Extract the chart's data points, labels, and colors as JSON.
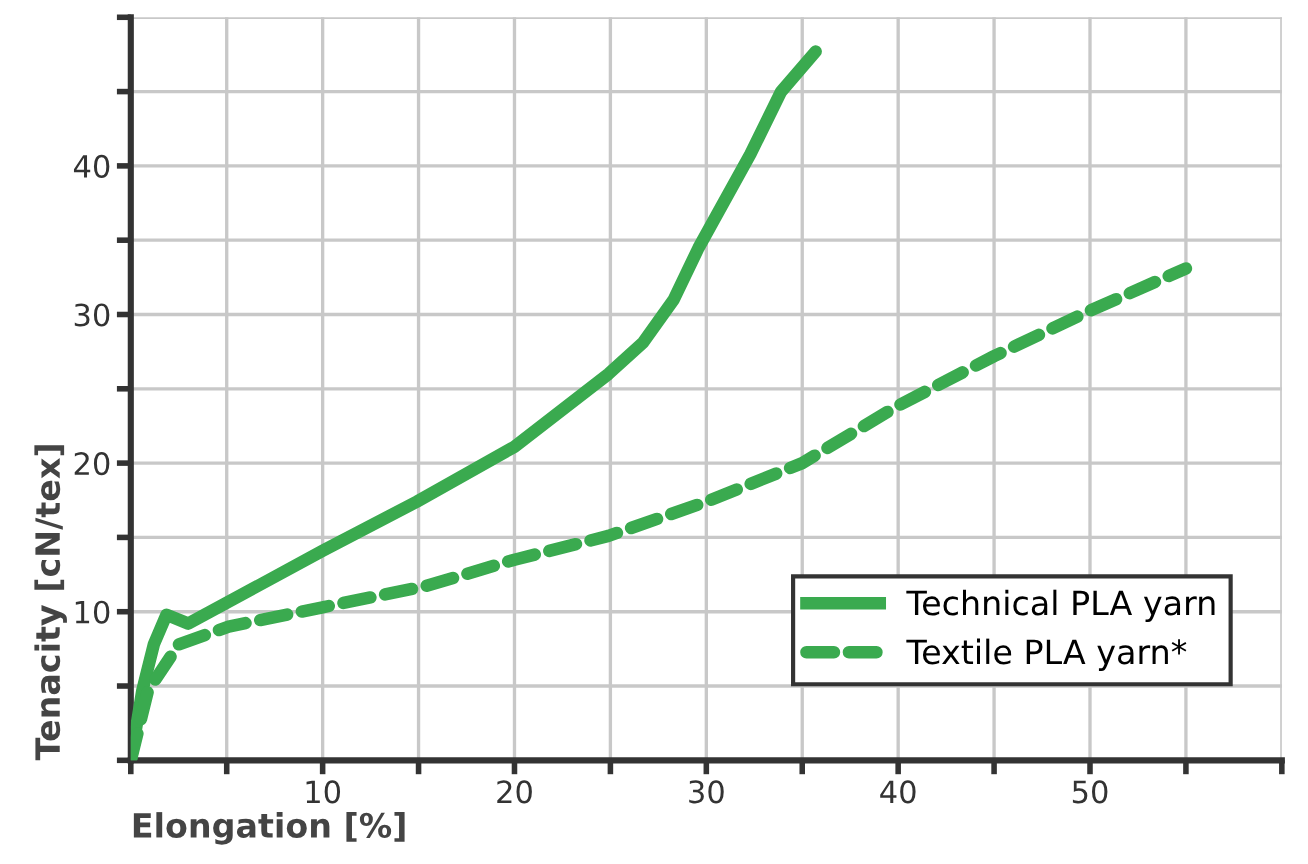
{
  "chart_data": {
    "type": "line",
    "xlabel": "Elongation [%]",
    "ylabel": "Tenacity [cN/tex]",
    "xlim": [
      0,
      60
    ],
    "ylim": [
      0,
      50
    ],
    "xticks": [
      {
        "value": 0,
        "label": null
      },
      {
        "value": 5,
        "label": null
      },
      10,
      {
        "value": 15,
        "label": null
      },
      20,
      {
        "value": 25,
        "label": null
      },
      30,
      {
        "value": 35,
        "label": null
      },
      40,
      {
        "value": 45,
        "label": null
      },
      50,
      {
        "value": 55,
        "label": null
      },
      {
        "value": 60,
        "label": null
      }
    ],
    "yticks": [
      {
        "value": 0,
        "label": null
      },
      {
        "value": 5,
        "label": null
      },
      10,
      {
        "value": 15,
        "label": null
      },
      20,
      {
        "value": 25,
        "label": null
      },
      30,
      {
        "value": 35,
        "label": null
      },
      40,
      {
        "value": 45,
        "label": null
      },
      {
        "value": 50,
        "label": null
      }
    ],
    "grid": true,
    "legend": "bottom right",
    "marker": "none",
    "series": [
      {
        "name": "Technical PLA yarn",
        "color": "#3aaa4f",
        "line_style": "solid",
        "x": [
          0,
          0.6,
          1.2,
          1.86,
          3.0,
          10,
          14.9,
          20,
          24.9,
          26.7,
          28.3,
          29.6,
          32.3,
          33.9,
          35.7
        ],
        "values": [
          0,
          4.7,
          7.8,
          9.8,
          9.2,
          14.1,
          17.4,
          21.1,
          26.0,
          28.1,
          31.0,
          34.5,
          40.8,
          45.0,
          47.7
        ]
      },
      {
        "name": "Textile PLA yarn*",
        "color": "#3aaa4f",
        "line_style": "dashed",
        "x": [
          0,
          0.9,
          2.5,
          5.1,
          10,
          15.3,
          20,
          24.9,
          30,
          35,
          39.9,
          45,
          49.9,
          55
        ],
        "values": [
          0,
          4.7,
          7.8,
          9.0,
          10.3,
          11.7,
          13.5,
          15.1,
          17.4,
          20.0,
          23.8,
          27.2,
          30.2,
          33.1
        ]
      }
    ]
  }
}
